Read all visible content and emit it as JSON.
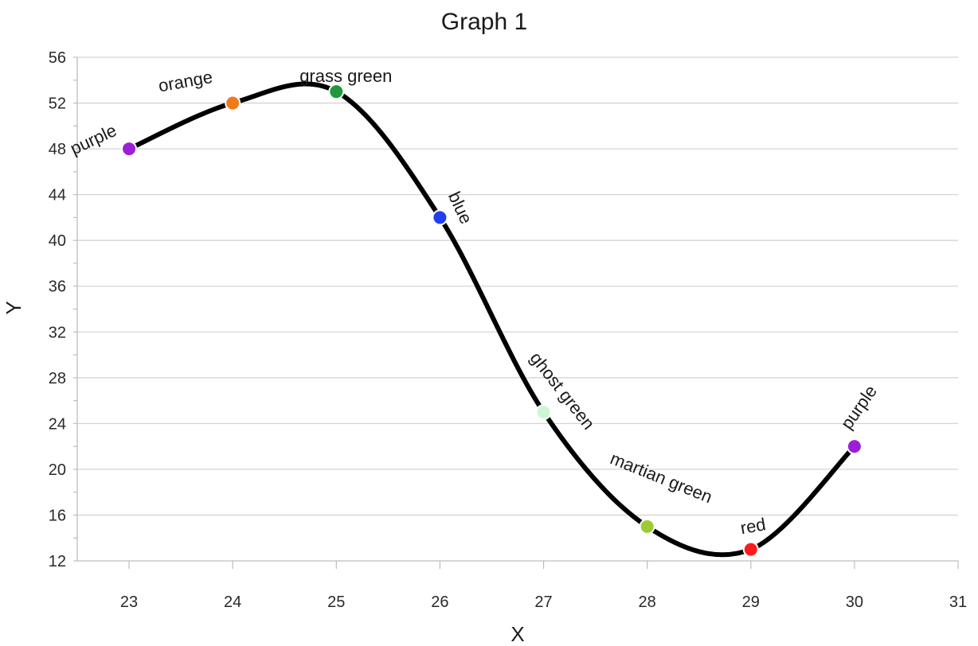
{
  "chart_data": {
    "type": "line",
    "title": "Graph 1",
    "xlabel": "X",
    "ylabel": "Y",
    "xlim": [
      22.5,
      31
    ],
    "ylim": [
      12,
      56
    ],
    "xticks": [
      23,
      24,
      25,
      26,
      27,
      28,
      29,
      30,
      31
    ],
    "yticks": [
      12,
      16,
      20,
      24,
      28,
      32,
      36,
      40,
      44,
      48,
      52,
      56
    ],
    "grid": "horizontal",
    "smooth": true,
    "line_color": "#000000",
    "series": [
      {
        "points": [
          {
            "x": 23,
            "y": 48,
            "label": "purple",
            "color": "#9b1fd8"
          },
          {
            "x": 24,
            "y": 52,
            "label": "orange",
            "color": "#f07a1a"
          },
          {
            "x": 25,
            "y": 53,
            "label": "grass green",
            "color": "#1f9a3a"
          },
          {
            "x": 26,
            "y": 42,
            "label": "blue",
            "color": "#1f3ff0"
          },
          {
            "x": 27,
            "y": 25,
            "label": "ghost green",
            "color": "#cdf7d2"
          },
          {
            "x": 28,
            "y": 15,
            "label": "martian green",
            "color": "#9acd32"
          },
          {
            "x": 29,
            "y": 13,
            "label": "red",
            "color": "#ff1a1a"
          },
          {
            "x": 30,
            "y": 22,
            "label": "purple",
            "color": "#9b1fd8"
          }
        ]
      }
    ]
  }
}
